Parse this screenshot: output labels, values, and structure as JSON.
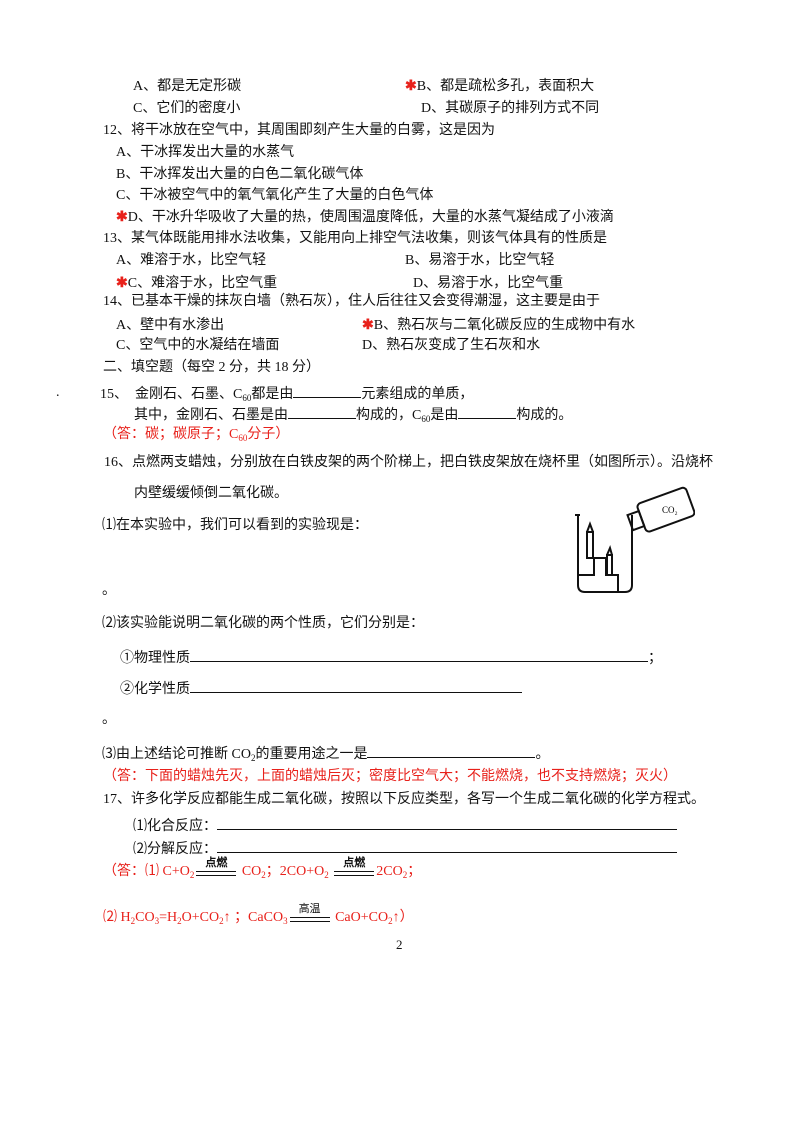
{
  "q11": {
    "a": "A、都是无定形碳",
    "b": "B、都是疏松多孔，表面积大",
    "c": "C、它们的密度小",
    "d": "D、其碳原子的排列方式不同",
    "star": "✱"
  },
  "q12": {
    "stem": "12、将干冰放在空气中，其周围即刻产生大量的白雾，这是因为",
    "a": "A、干冰挥发出大量的水蒸气",
    "b": "B、干冰挥发出大量的白色二氧化碳气体",
    "c": "C、干冰被空气中的氧气氧化产生了大量的白色气体",
    "d": "D、干冰升华吸收了大量的热，使周围温度降低，大量的水蒸气凝结成了小液滴"
  },
  "q13": {
    "stem": "13、某气体既能用排水法收集，又能用向上排空气法收集，则该气体具有的性质是",
    "a": "A、难溶于水，比空气轻",
    "b": "B、易溶于水，比空气轻",
    "c": "C、难溶于水，比空气重",
    "d": "D、易溶于水，比空气重"
  },
  "q14": {
    "stem": "14、已基本干燥的抹灰白墙（熟石灰），住人后往往又会变得潮湿，这主要是由于",
    "a": "A、壁中有水渗出",
    "b": "B、熟石灰与二氧化碳反应的生成物中有水",
    "c": "C、空气中的水凝结在墙面",
    "d": "D、熟石灰变成了生石灰和水"
  },
  "section2": "二、填空题（每空 2 分，共 18 分）",
  "q15": {
    "dot": ".",
    "num": "15、",
    "t1": "金刚石、石墨、C",
    "sub60": "60",
    "t2": "都是由",
    "t3": "元素组成的单质，",
    "t4": "其中，金刚石、石墨是由",
    "t5": "构成的，C",
    "t6": "是由",
    "t7": "构成的。",
    "ans1": "（答：碳；碳原子；C",
    "ans2": "分子）"
  },
  "q16": {
    "stem": "16、点燃两支蜡烛，分别放在白铁皮架的两个阶梯上，把白铁皮架放在烧杯里（如图所示）。沿烧杯",
    "stem2": "内壁缓缓倾倒二氧化碳。",
    "p1": "⑴在本实验中，我们可以看到的实验现是：",
    "end1": "。",
    "p2": "⑵该实验能说明二氧化碳的两个性质，它们分别是：",
    "phys": "①物理性质",
    "phys_end": "；",
    "chem": "②化学性质",
    "end2": "。",
    "p3a": "⑶由上述结论可推断 CO",
    "p3sub": "2",
    "p3b": "的重要用途之一是",
    "p3end": "。",
    "ans": "（答：下面的蜡烛先灭，上面的蜡烛后灭；密度比空气大；不能燃烧，也不支持燃烧；灭火）",
    "bottle_label": "CO₂"
  },
  "q17": {
    "stem": "17、许多化学反应都能生成二氧化碳，按照以下反应类型，各写一个生成二氧化碳的化学方程式。",
    "p1": "⑴化合反应：",
    "p2": "⑵分解反应：",
    "ans1": {
      "pre": "（答：⑴ C+O",
      "cond": "点燃",
      "mid": "CO",
      "mid2": "；2CO+O",
      "end": "2CO",
      "end2": "；"
    },
    "ans2": {
      "pre": "⑵ H",
      "a": "CO",
      "b": "=H",
      "c": "O+CO",
      "d": "↑ ；CaCO",
      "cond": "高温",
      "e": "CaO+CO",
      "f": "↑）"
    },
    "s2": "2",
    "s3": "3"
  },
  "page_number": "2"
}
